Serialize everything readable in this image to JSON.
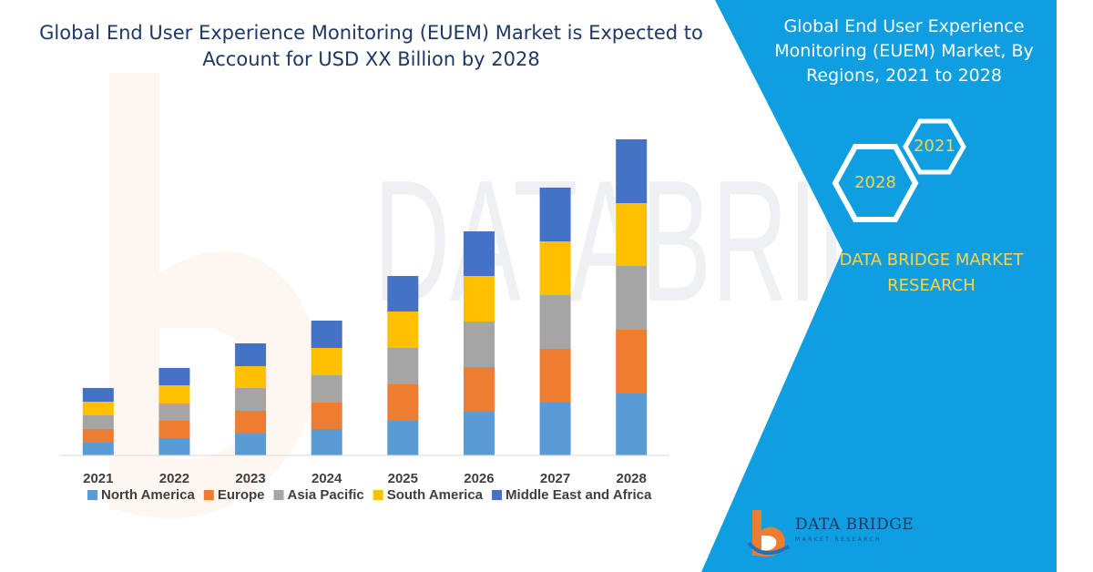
{
  "title": "Global End User Experience Monitoring (EUEM) Market is Expected to Account for USD XX Billion by 2028",
  "panel": {
    "title": "Global End User Experience Monitoring (EUEM) Market, By Regions, 2021 to 2028",
    "hex_top": "2021",
    "hex_bottom": "2028",
    "brand": "DATA BRIDGE MARKET RESEARCH",
    "logo_text": "DATA BRIDGE",
    "logo_sub": "MARKET RESEARCH"
  },
  "colors": {
    "panel_bg": "#0f9ee0",
    "north_america": "#5b9bd5",
    "europe": "#ed7d31",
    "asia_pacific": "#a5a5a5",
    "south_america": "#ffc000",
    "middle_east_africa": "#4472c4",
    "title": "#1f3864"
  },
  "chart_data": {
    "type": "bar",
    "stacked": true,
    "categories": [
      "2021",
      "2022",
      "2023",
      "2024",
      "2025",
      "2026",
      "2027",
      "2028"
    ],
    "series": [
      {
        "name": "North America",
        "color": "#5b9bd5",
        "values": [
          14,
          19,
          24,
          29,
          38,
          48,
          58,
          68
        ]
      },
      {
        "name": "Europe",
        "color": "#ed7d31",
        "values": [
          15,
          19,
          25,
          29,
          40,
          49,
          59,
          70
        ]
      },
      {
        "name": "Asia Pacific",
        "color": "#a5a5a5",
        "values": [
          15,
          19,
          25,
          30,
          40,
          50,
          59,
          70
        ]
      },
      {
        "name": "South America",
        "color": "#ffc000",
        "values": [
          15,
          20,
          24,
          30,
          40,
          50,
          59,
          69
        ]
      },
      {
        "name": "Middle East and Africa",
        "color": "#4472c4",
        "values": [
          15,
          19,
          25,
          30,
          39,
          49,
          59,
          70
        ]
      }
    ],
    "ylim": [
      0,
      360
    ],
    "grid": false,
    "legend": "bottom",
    "xlabel": "",
    "ylabel": ""
  }
}
